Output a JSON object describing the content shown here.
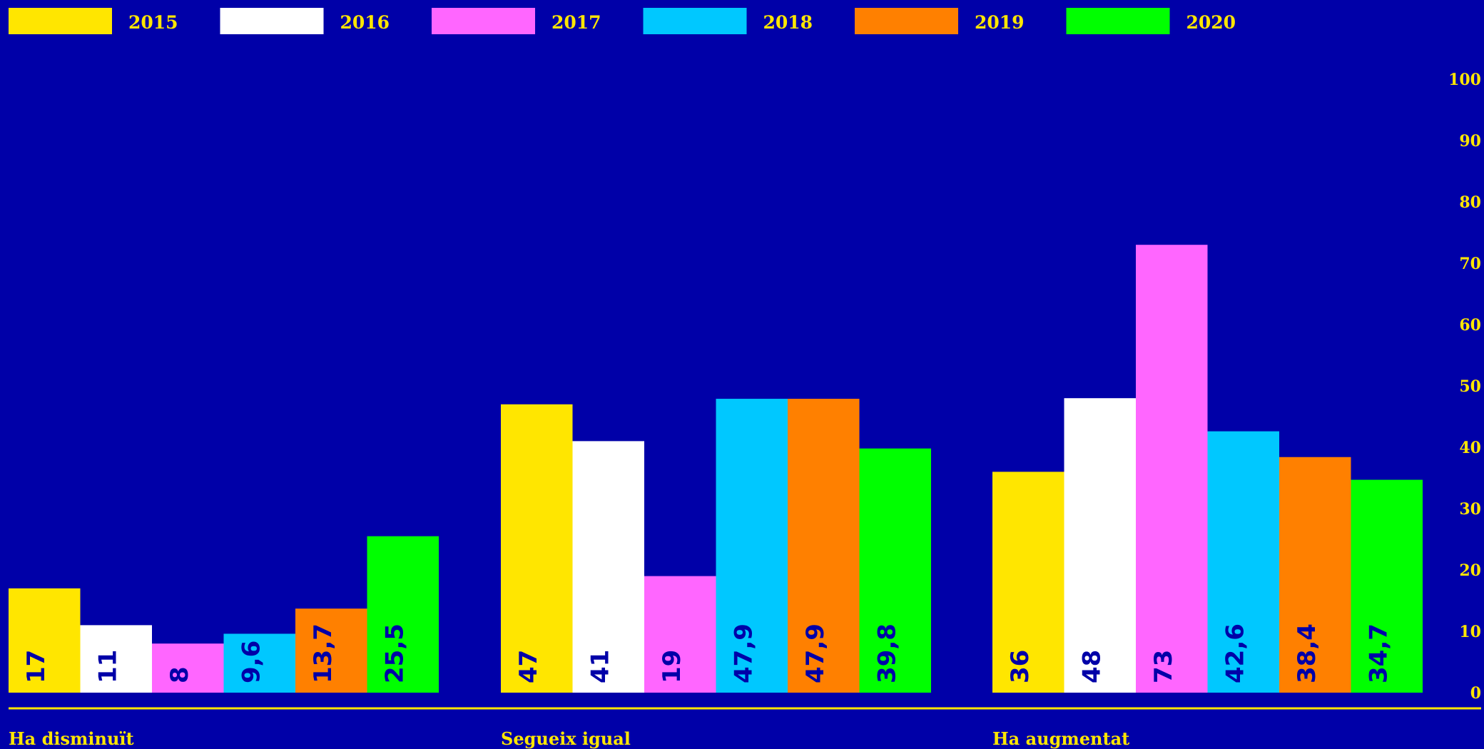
{
  "chart_data": {
    "type": "bar",
    "orientation": "vertical",
    "categories": [
      "Ha disminuït",
      "Segueix igual",
      "Ha augmentat"
    ],
    "series": [
      {
        "name": "2015",
        "color": "#ffe600",
        "values": [
          17,
          47,
          36
        ],
        "labels": [
          "17",
          "47",
          "36"
        ]
      },
      {
        "name": "2016",
        "color": "#ffffff",
        "values": [
          11,
          41,
          48
        ],
        "labels": [
          "11",
          "41",
          "48"
        ]
      },
      {
        "name": "2017",
        "color": "#ff66ff",
        "values": [
          8,
          19,
          73
        ],
        "labels": [
          "8",
          "19",
          "73"
        ]
      },
      {
        "name": "2018",
        "color": "#00c8ff",
        "values": [
          9.6,
          47.9,
          42.6
        ],
        "labels": [
          "9,6",
          "47,9",
          "42,6"
        ]
      },
      {
        "name": "2019",
        "color": "#ff8000",
        "values": [
          13.7,
          47.9,
          38.4
        ],
        "labels": [
          "13,7",
          "47,9",
          "38,4"
        ]
      },
      {
        "name": "2020",
        "color": "#00ff00",
        "values": [
          25.5,
          39.8,
          34.7
        ],
        "labels": [
          "25,5",
          "39,8",
          "34,7"
        ]
      }
    ],
    "ylim": [
      0,
      100
    ],
    "yticks": [
      "0",
      "10",
      "20",
      "30",
      "40",
      "50",
      "60",
      "70",
      "80",
      "90",
      "100"
    ],
    "y_axis_side": "right",
    "legend_position": "top-left",
    "grid": false,
    "background_color": "#0000a8",
    "text_color": "#ffe600",
    "inside_label_color": "#0000a8",
    "value_label_orientation": "vertical"
  }
}
